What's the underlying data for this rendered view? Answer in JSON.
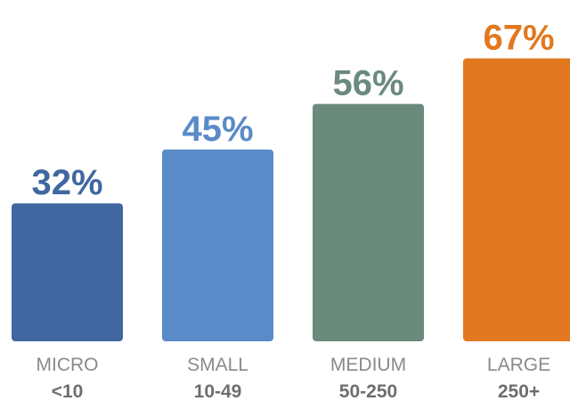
{
  "chart_data": {
    "type": "bar",
    "categories": [
      "MICRO",
      "SMALL",
      "MEDIUM",
      "LARGE"
    ],
    "ranges": [
      "<10",
      "10-49",
      "50-250",
      "250+"
    ],
    "values": [
      32,
      45,
      56,
      67
    ],
    "value_labels": [
      "32%",
      "45%",
      "56%",
      "67%"
    ],
    "colors": [
      "#40679f",
      "#5a8bc8",
      "#6a8a7c",
      "#e2781f"
    ],
    "ylim": [
      0,
      100
    ],
    "grid": false,
    "legend": "none"
  }
}
